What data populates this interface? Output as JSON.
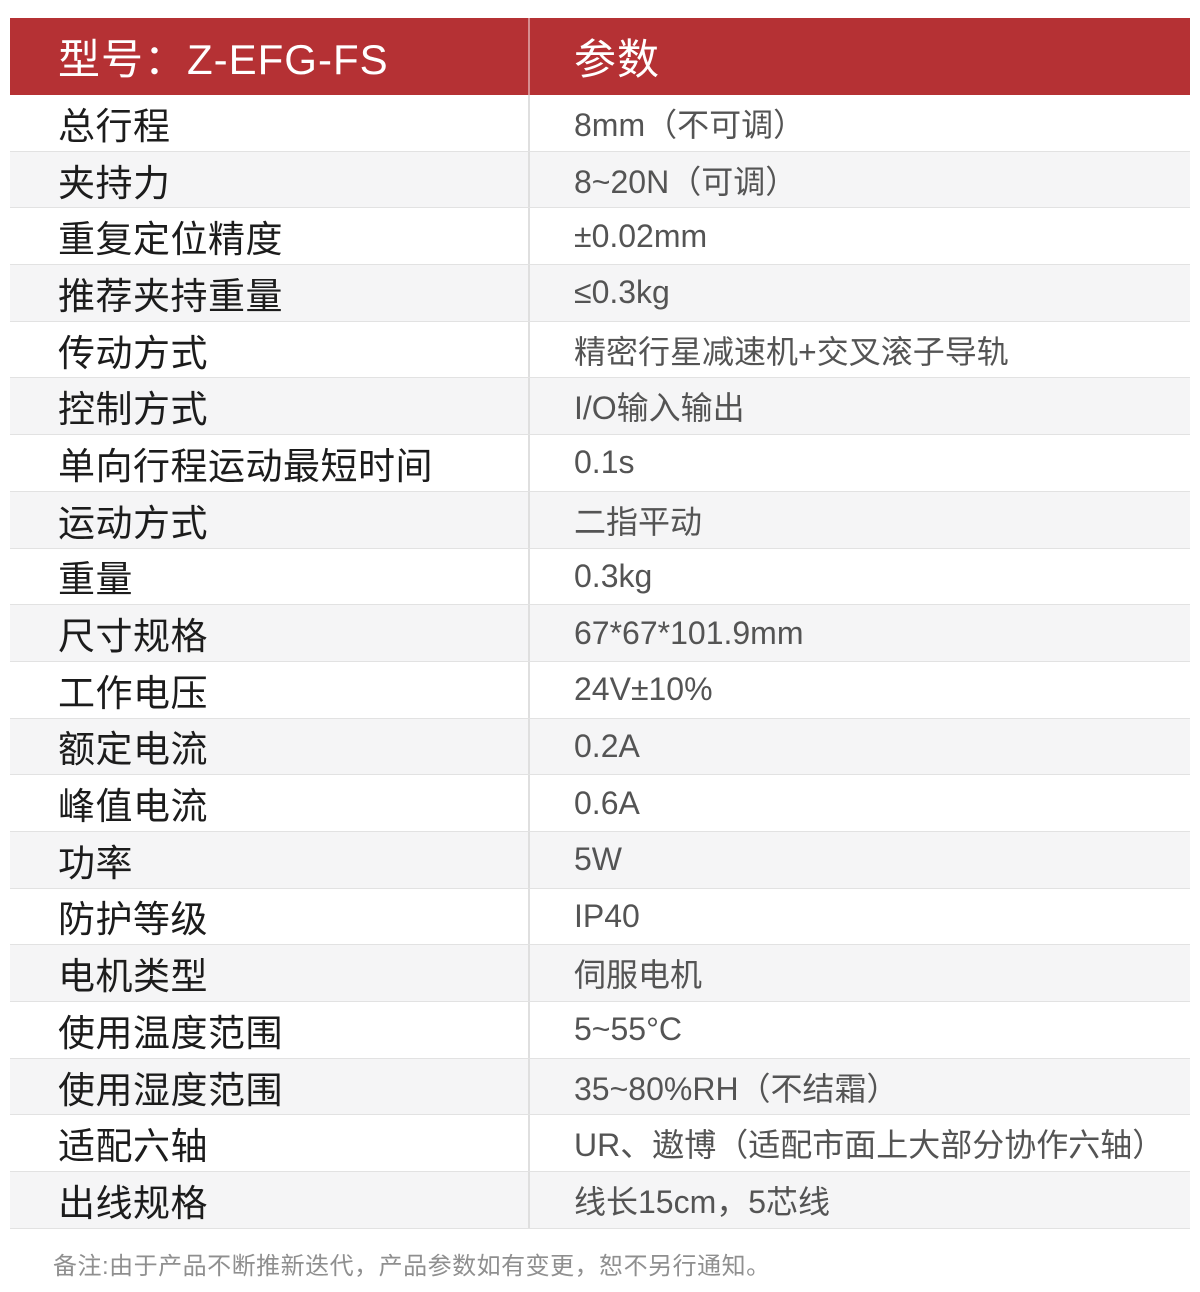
{
  "colors": {
    "header_bg": "#b53134",
    "header_text": "#ffffff",
    "row_alt_bg": "#f5f5f6",
    "divider": "#dfdfdf",
    "row_border": "#e2e2e2",
    "label_text": "#1c1c1c",
    "value_text": "#545454",
    "note_text": "#8f8f8f"
  },
  "table": {
    "header": {
      "model_label": "型号：Z-EFG-FS",
      "param_label": "参数"
    },
    "rows": [
      {
        "label": "总行程",
        "value": "8mm（不可调）"
      },
      {
        "label": "夹持力",
        "value": "8~20N（可调）"
      },
      {
        "label": "重复定位精度",
        "value": "±0.02mm"
      },
      {
        "label": "推荐夹持重量",
        "value": "≤0.3kg"
      },
      {
        "label": "传动方式",
        "value": "精密行星减速机+交叉滚子导轨"
      },
      {
        "label": "控制方式",
        "value": "I/O输入输出"
      },
      {
        "label": "单向行程运动最短时间",
        "value": "0.1s"
      },
      {
        "label": "运动方式",
        "value": "二指平动"
      },
      {
        "label": "重量",
        "value": "0.3kg"
      },
      {
        "label": "尺寸规格",
        "value": "67*67*101.9mm"
      },
      {
        "label": "工作电压",
        "value": "24V±10%"
      },
      {
        "label": "额定电流",
        "value": "0.2A"
      },
      {
        "label": "峰值电流",
        "value": "0.6A"
      },
      {
        "label": "功率",
        "value": "5W"
      },
      {
        "label": "防护等级",
        "value": "IP40"
      },
      {
        "label": "电机类型",
        "value": "伺服电机"
      },
      {
        "label": "使用温度范围",
        "value": "5~55°C"
      },
      {
        "label": "使用湿度范围",
        "value": "35~80%RH（不结霜）"
      },
      {
        "label": "适配六轴",
        "value": "UR、遨博（适配市面上大部分协作六轴）"
      },
      {
        "label": "出线规格",
        "value": "线长15cm，5芯线"
      }
    ],
    "note": "备注:由于产品不断推新迭代，产品参数如有变更，恕不另行通知。"
  }
}
